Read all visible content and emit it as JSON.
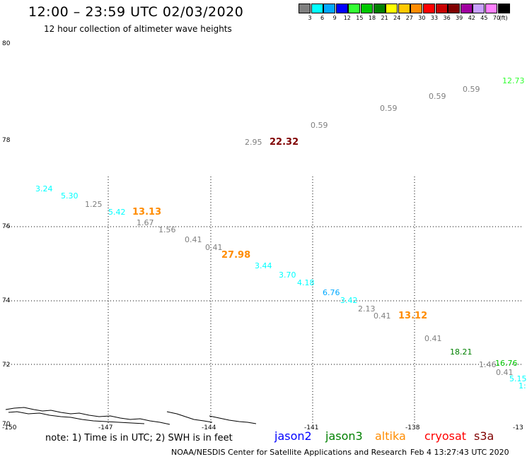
{
  "title": "12:00 – 23:59 UTC 02/03/2020",
  "subtitle": "12 hour collection of altimeter wave heights",
  "colorbar": {
    "colors": [
      "#7f7f7f",
      "#00ffff",
      "#00a8ff",
      "#0000ff",
      "#33ff33",
      "#00c800",
      "#008000",
      "#ffff00",
      "#ffc800",
      "#ff8c00",
      "#ff0000",
      "#c80000",
      "#800000",
      "#a000a0",
      "#c8a0ff",
      "#ff80ff",
      "#000000"
    ],
    "labels": [
      "3",
      "6",
      "9",
      "12",
      "15",
      "18",
      "21",
      "24",
      "27",
      "30",
      "33",
      "36",
      "39",
      "42",
      "45",
      "70",
      "(ft)"
    ]
  },
  "lat_labels": [
    "80",
    "78",
    "76",
    "74",
    "72",
    "70"
  ],
  "lon_labels": [
    "-150",
    "-147",
    "-144",
    "-141",
    "-138",
    "-13"
  ],
  "observations": [
    {
      "text": "12.73",
      "color": "#33ff33"
    },
    {
      "text": "0.59",
      "color": "#7f7f7f"
    },
    {
      "text": "0.59",
      "color": "#7f7f7f"
    },
    {
      "text": "0.59",
      "color": "#7f7f7f"
    },
    {
      "text": "0.59",
      "color": "#7f7f7f"
    },
    {
      "text": "2.95",
      "color": "#7f7f7f"
    },
    {
      "text": "22.32",
      "color": "#800000"
    },
    {
      "text": "3.24",
      "color": "#00ffff"
    },
    {
      "text": "5.30",
      "color": "#00ffff"
    },
    {
      "text": "1.25",
      "color": "#7f7f7f"
    },
    {
      "text": "5.42",
      "color": "#00ffff"
    },
    {
      "text": "13.13",
      "color": "#ff8c00"
    },
    {
      "text": "1.67",
      "color": "#7f7f7f"
    },
    {
      "text": "1.56",
      "color": "#7f7f7f"
    },
    {
      "text": "0.41",
      "color": "#7f7f7f"
    },
    {
      "text": "0.41",
      "color": "#7f7f7f"
    },
    {
      "text": "27.98",
      "color": "#ff8c00"
    },
    {
      "text": "3.44",
      "color": "#00ffff"
    },
    {
      "text": "3.70",
      "color": "#00ffff"
    },
    {
      "text": "4.18",
      "color": "#00ffff"
    },
    {
      "text": "6.76",
      "color": "#00a8ff"
    },
    {
      "text": "3.42",
      "color": "#00ffff"
    },
    {
      "text": "2.13",
      "color": "#7f7f7f"
    },
    {
      "text": "0.41",
      "color": "#7f7f7f"
    },
    {
      "text": "13.12",
      "color": "#ff8c00"
    },
    {
      "text": "0.41",
      "color": "#7f7f7f"
    },
    {
      "text": "18.21",
      "color": "#008000"
    },
    {
      "text": "1.46",
      "color": "#7f7f7f"
    },
    {
      "text": "16.76",
      "color": "#00c800"
    },
    {
      "text": "0.41",
      "color": "#7f7f7f"
    },
    {
      "text": "5.15",
      "color": "#00ffff"
    },
    {
      "text": "1:",
      "color": "#00ffff"
    }
  ],
  "note": "note: 1) Time is in UTC; 2) SWH is in feet",
  "satellites": [
    {
      "name": "jason2",
      "color": "#0000ff"
    },
    {
      "name": "jason3",
      "color": "#008000"
    },
    {
      "name": "altika",
      "color": "#ff8c00"
    },
    {
      "name": "cryosat",
      "color": "#ff0000"
    },
    {
      "name": "s3a",
      "color": "#800000"
    }
  ],
  "footer_left": "NOAA/NESDIS Center for Satellite Applications and Research",
  "footer_right": "Feb  4 13:27:43 UTC 2020"
}
